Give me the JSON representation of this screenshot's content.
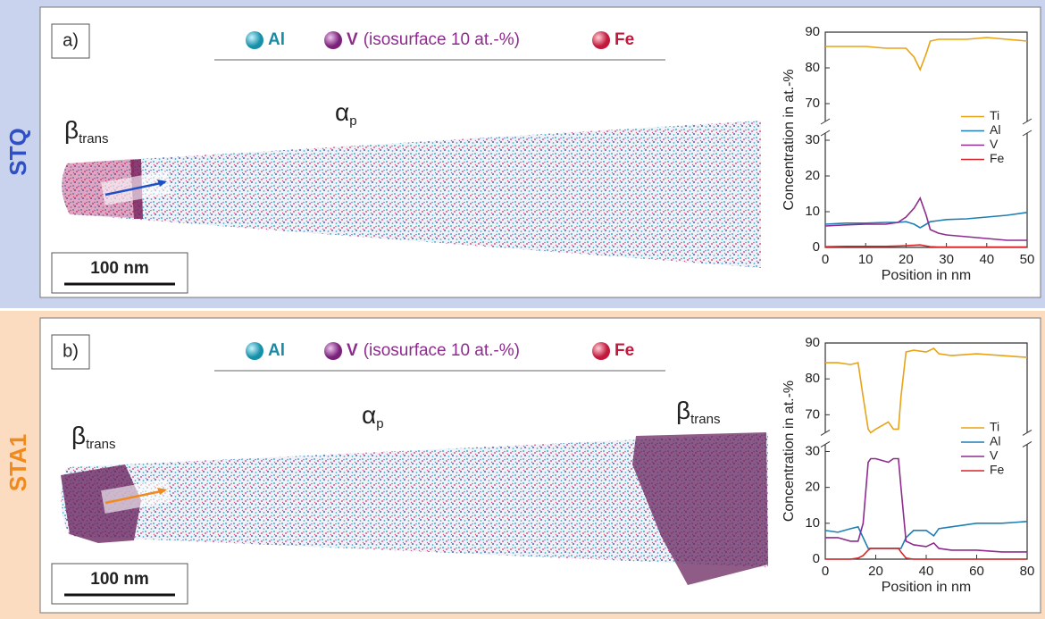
{
  "panels": [
    {
      "row_label": "STQ",
      "panel_label": "a)",
      "scale_bar": "100 nm",
      "legend": {
        "al": "Al",
        "v": "V",
        "v_note": "(isosurface 10 at.-%)",
        "fe": "Fe"
      },
      "phases": [
        {
          "symbol": "β",
          "subscript": "trans"
        },
        {
          "symbol": "α",
          "subscript": "p"
        }
      ]
    },
    {
      "row_label": "STA1",
      "panel_label": "b)",
      "scale_bar": "100 nm",
      "legend": {
        "al": "Al",
        "v": "V",
        "v_note": "(isosurface 10 at.-%)",
        "fe": "Fe"
      },
      "phases": [
        {
          "symbol": "β",
          "subscript": "trans"
        },
        {
          "symbol": "α",
          "subscript": "p"
        },
        {
          "symbol": "β",
          "subscript": "trans"
        }
      ]
    }
  ],
  "chart_data": [
    {
      "type": "line",
      "x_label": "Position in nm",
      "y_label": "Concentration in at.-%",
      "x": [
        0,
        5,
        10,
        15,
        18,
        20,
        22,
        23.5,
        25,
        26,
        28,
        30,
        35,
        40,
        45,
        50
      ],
      "series": [
        {
          "name": "Ti",
          "color": "#e8a317",
          "values": [
            86,
            86,
            86,
            85.5,
            85.5,
            85.5,
            83,
            79.5,
            84,
            87.5,
            88,
            88,
            88,
            88.5,
            88,
            87.5
          ]
        },
        {
          "name": "Al",
          "color": "#1f7fb3",
          "values": [
            6.5,
            6.8,
            6.8,
            7,
            7,
            7.2,
            6.5,
            5.5,
            6.5,
            7.2,
            7.5,
            7.8,
            8,
            8.5,
            9,
            9.8
          ]
        },
        {
          "name": "V",
          "color": "#8e2b8e",
          "values": [
            6,
            6.3,
            6.5,
            6.5,
            7,
            8.5,
            11,
            13.8,
            9,
            5,
            4,
            3.5,
            3,
            2.5,
            2,
            2
          ]
        },
        {
          "name": "Fe",
          "color": "#d62728",
          "values": [
            0.2,
            0.3,
            0.3,
            0.3,
            0.4,
            0.5,
            0.6,
            0.7,
            0.4,
            0.2,
            0.1,
            0.1,
            0.1,
            0.1,
            0.1,
            0.1
          ]
        }
      ],
      "xlim": [
        0,
        50
      ],
      "xticks": [
        0,
        10,
        20,
        30,
        40,
        50
      ],
      "ylim": [
        0,
        90
      ],
      "y_break": [
        32,
        65
      ],
      "yticks": [
        0,
        10,
        20,
        30,
        70,
        80,
        90
      ],
      "legend": "center right"
    },
    {
      "type": "line",
      "x_label": "Position in nm",
      "y_label": "Concentration in at.-%",
      "x": [
        0,
        5,
        10,
        13,
        15,
        17,
        18,
        20,
        25,
        27,
        29,
        30,
        32,
        35,
        40,
        43,
        45,
        50,
        60,
        70,
        80
      ],
      "series": [
        {
          "name": "Ti",
          "color": "#e8a317",
          "values": [
            84.5,
            84.5,
            84,
            84.5,
            75,
            66,
            65,
            66,
            68,
            66,
            66,
            75,
            87.5,
            88,
            87.5,
            88.5,
            87,
            86.5,
            87,
            86.5,
            86
          ]
        },
        {
          "name": "Al",
          "color": "#1f7fb3",
          "values": [
            8,
            7.5,
            8.5,
            9,
            6,
            3,
            3,
            3,
            3,
            3,
            3,
            3,
            6,
            8,
            8,
            6.5,
            8.5,
            9,
            10,
            10,
            10.5
          ]
        },
        {
          "name": "V",
          "color": "#8e2b8e",
          "values": [
            6,
            6,
            5,
            5,
            10,
            27,
            28,
            28,
            27,
            28,
            28,
            20,
            5,
            4,
            3.5,
            4.5,
            3,
            2.5,
            2.5,
            2,
            2
          ]
        },
        {
          "name": "Fe",
          "color": "#d62728",
          "values": [
            0,
            0,
            0,
            0.3,
            1,
            2.5,
            3,
            3,
            3,
            3,
            3,
            2,
            0.3,
            0,
            0,
            0,
            0,
            0,
            0,
            0,
            0
          ]
        }
      ],
      "xlim": [
        0,
        80
      ],
      "xticks": [
        0,
        20,
        40,
        60,
        80
      ],
      "ylim": [
        0,
        90
      ],
      "y_break": [
        32,
        65
      ],
      "yticks": [
        0,
        10,
        20,
        30,
        70,
        80,
        90
      ],
      "legend": "center right"
    }
  ]
}
